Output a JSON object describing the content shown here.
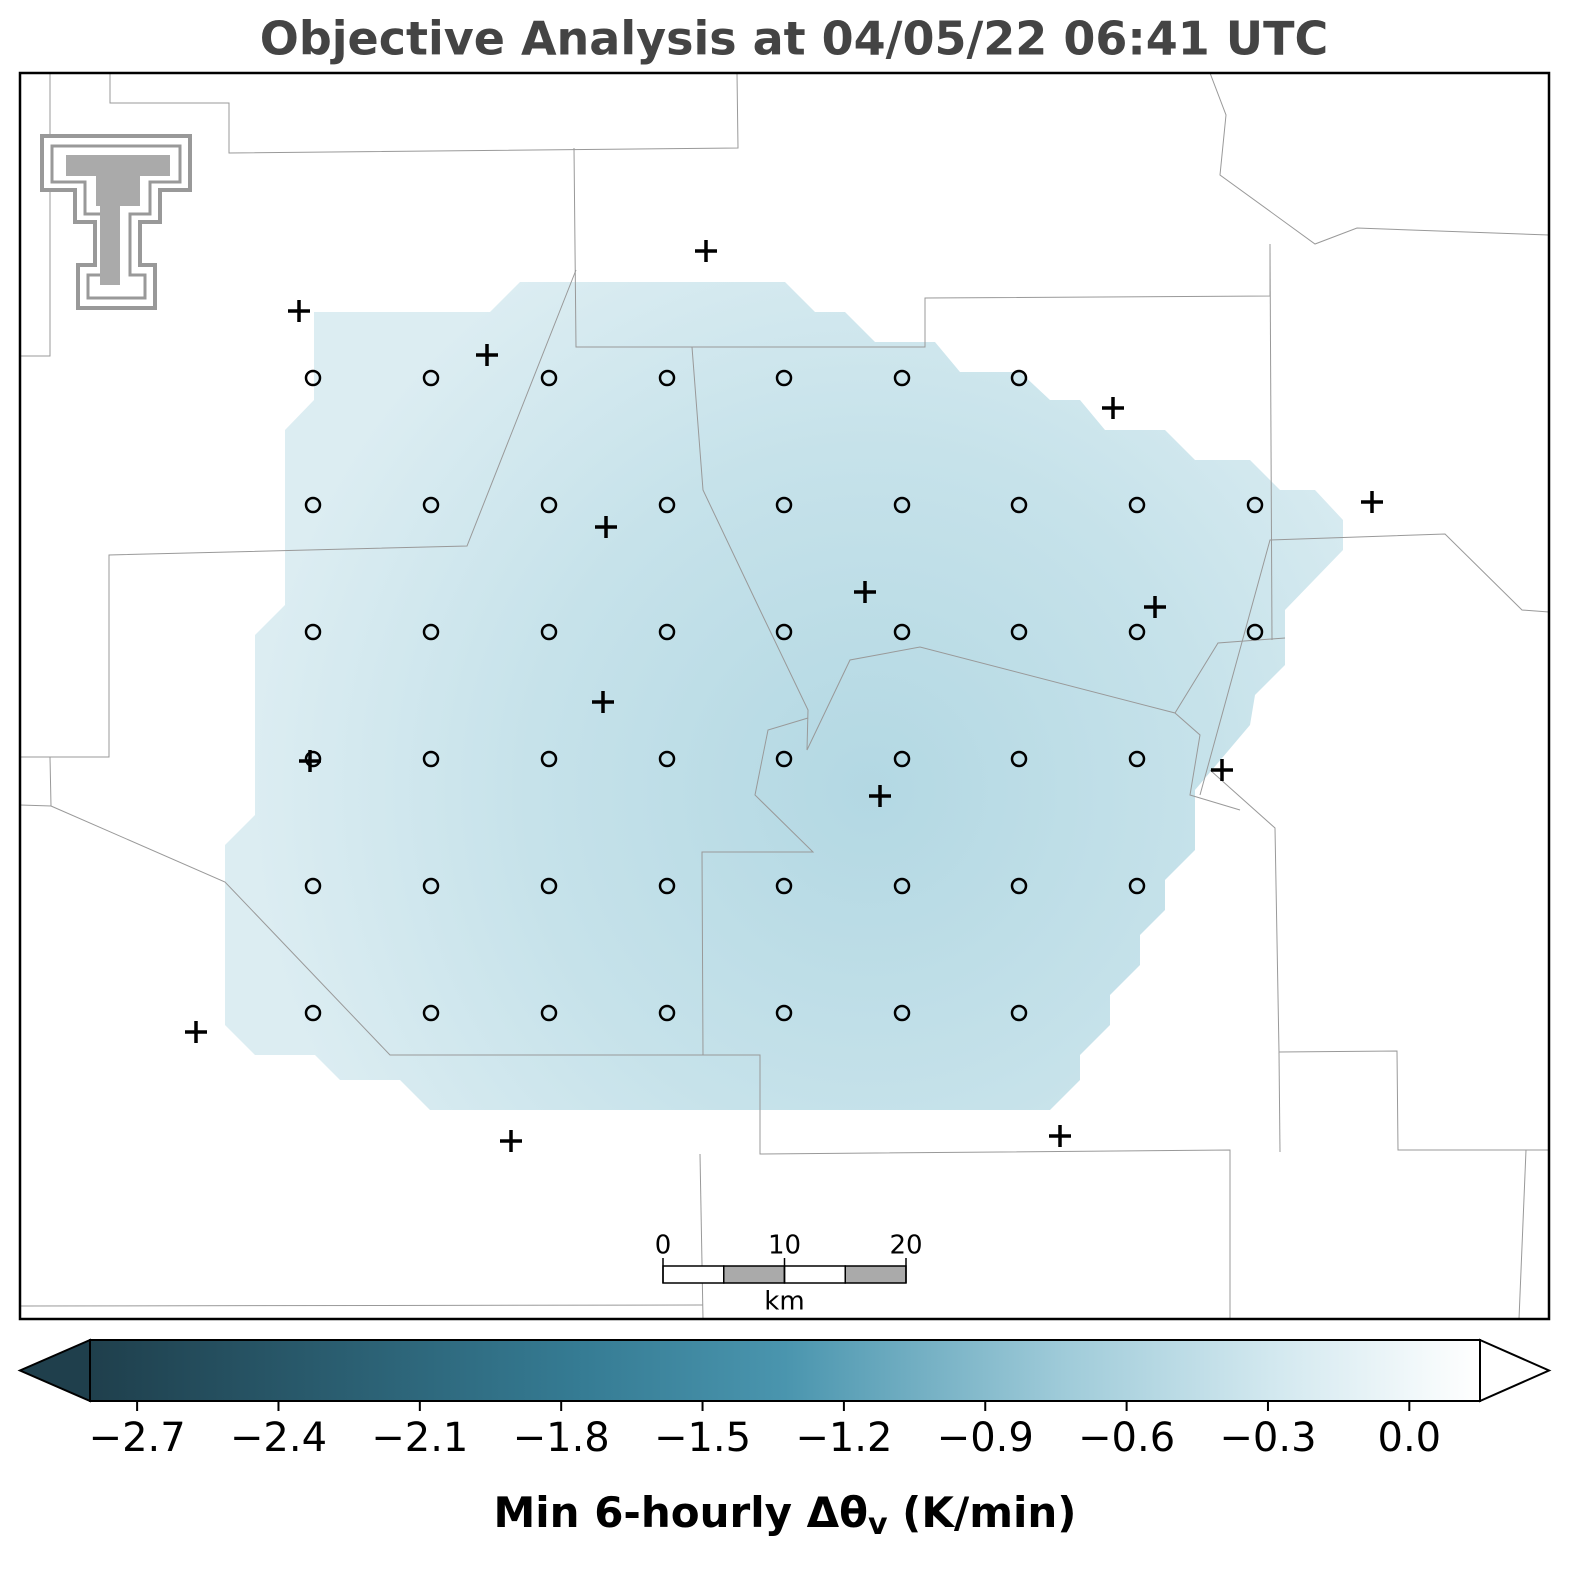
{
  "title": "Objective Analysis at 04/05/22 06:41 UTC",
  "colorbar": {
    "label_parts": [
      "Min 6-hourly Δθ",
      "v",
      " (K/min)"
    ],
    "clim": [
      -2.8,
      0.15
    ],
    "ticks": [
      {
        "value": -2.7,
        "label": "−2.7"
      },
      {
        "value": -2.4,
        "label": "−2.4"
      },
      {
        "value": -2.1,
        "label": "−2.1"
      },
      {
        "value": -1.8,
        "label": "−1.8"
      },
      {
        "value": -1.5,
        "label": "−1.5"
      },
      {
        "value": -1.2,
        "label": "−1.2"
      },
      {
        "value": -0.9,
        "label": "−0.9"
      },
      {
        "value": -0.6,
        "label": "−0.6"
      },
      {
        "value": -0.3,
        "label": "−0.3"
      },
      {
        "value": 0,
        "label": "0.0"
      }
    ]
  },
  "scale_bar": {
    "ticks": [
      0,
      10,
      20
    ],
    "unit": "km"
  }
}
